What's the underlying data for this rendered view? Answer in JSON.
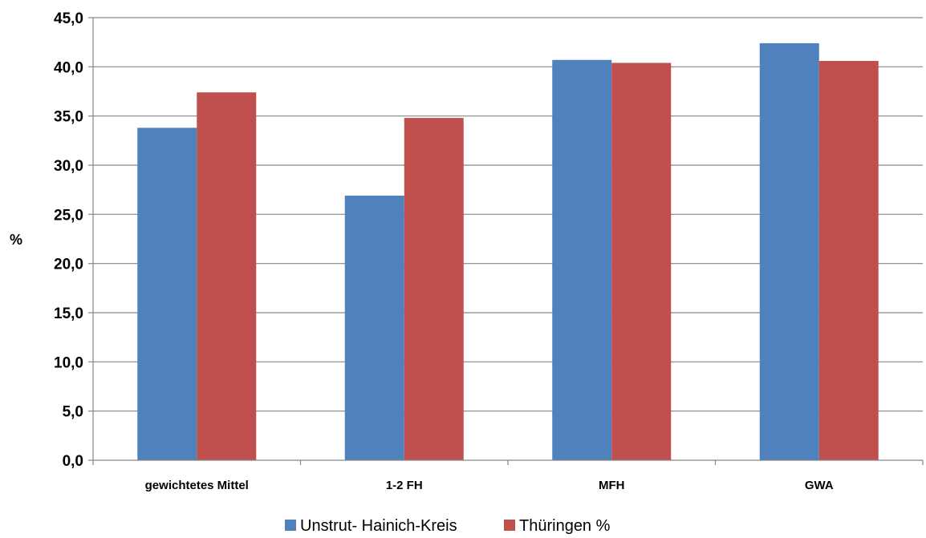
{
  "chart_data": {
    "type": "bar",
    "title": "",
    "xlabel": "",
    "ylabel": "%",
    "ylim": [
      0,
      45
    ],
    "ytick_step": 5,
    "ytick_labels": [
      "0,0",
      "5,0",
      "10,0",
      "15,0",
      "20,0",
      "25,0",
      "30,0",
      "35,0",
      "40,0",
      "45,0"
    ],
    "grid": true,
    "legend_position": "bottom",
    "categories": [
      "gewichtetes Mittel",
      "1-2 FH",
      "MFH",
      "GWA"
    ],
    "series": [
      {
        "name": "Unstrut- Hainich-Kreis",
        "color": "#4F81BD",
        "values": [
          33.8,
          26.9,
          40.7,
          42.4
        ]
      },
      {
        "name": "Thüringen %",
        "color": "#C0504D",
        "values": [
          37.4,
          34.8,
          40.4,
          40.6
        ]
      }
    ]
  }
}
